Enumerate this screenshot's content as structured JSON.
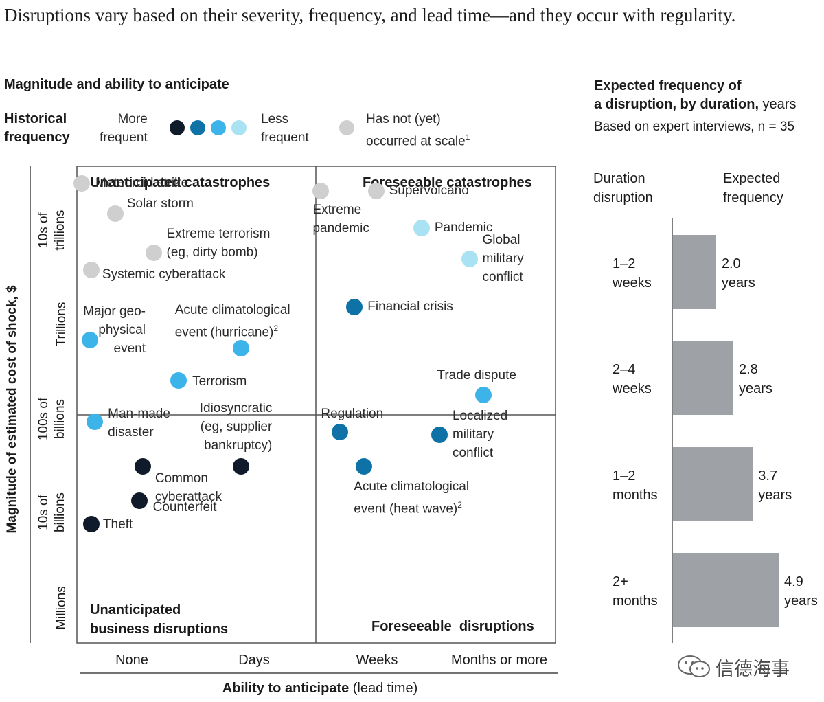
{
  "title": "Disruptions vary based on their severity, frequency, and lead time—and they occur with regularity.",
  "left_heading": "Magnitude and ability to anticipate",
  "legend": {
    "label": "Historical\nfrequency",
    "more": "More\nfrequent",
    "less": "Less\nfrequent",
    "not_yet": "Has not (yet)\noccurred at scale",
    "not_yet_sup": "1",
    "colors": [
      "#0f1b2a",
      "#0f72a7",
      "#3cb4ea",
      "#a9e2f2",
      "#cfcfcf"
    ]
  },
  "right_heading_bold": "Expected frequency of\na disruption, by duration,",
  "right_heading_unit": " years",
  "right_note": "Based on expert interviews, n = 35",
  "watermark": "信德海事",
  "quadrants": {
    "top_left": "Unanticipated catastrophes",
    "top_right": "Foreseeable catastrophes",
    "bottom_left": "Unanticipated\nbusiness disruptions",
    "bottom_right": "Foreseeable  disruptions"
  },
  "chart_data": [
    {
      "type": "scatter",
      "xlabel_bold": "Ability to anticipate",
      "xlabel_unit": " (lead time)",
      "ylabel": "Magnitude of estimated cost of shock, $",
      "x_ticks": [
        "None",
        "Days",
        "Weeks",
        "Months or more"
      ],
      "y_ticks": [
        "Millions",
        "10s of\nbillions",
        "100s of\nbillions",
        "Trillions",
        "10s of\ntrillions"
      ],
      "color_key": {
        "very_frequent": "#0f1b2a",
        "frequent": "#0f72a7",
        "less": "#3cb4ea",
        "rare": "#a9e2f2",
        "not_yet": "#cfcfcf"
      },
      "points": [
        {
          "label": "Meteoroid strike",
          "freq": "not_yet",
          "x": 0.04,
          "y": 4.82
        },
        {
          "label": "Solar storm",
          "freq": "not_yet",
          "x": 0.32,
          "y": 4.5
        },
        {
          "label": "Extreme terrorism\n(eg, dirty bomb)",
          "freq": "not_yet",
          "x": 0.64,
          "y": 4.09
        },
        {
          "label": "Systemic cyberattack",
          "freq": "not_yet",
          "x": 0.12,
          "y": 3.91
        },
        {
          "label": "Major geo-\nphysical\nevent",
          "freq": "less",
          "x": 0.11,
          "y": 3.18
        },
        {
          "label": "Acute climatological\nevent (hurricane)",
          "sup": "2",
          "freq": "less",
          "x": 1.37,
          "y": 3.09
        },
        {
          "label": "Terrorism",
          "freq": "less",
          "x": 0.85,
          "y": 2.75
        },
        {
          "label": "Extreme\npandemic",
          "freq": "not_yet",
          "x": 2.04,
          "y": 4.74
        },
        {
          "label": "Supervolcano",
          "freq": "not_yet",
          "x": 2.5,
          "y": 4.74
        },
        {
          "label": "Pandemic",
          "freq": "rare",
          "x": 2.88,
          "y": 4.35
        },
        {
          "label": "Global\nmilitary\nconflict",
          "freq": "rare",
          "x": 3.28,
          "y": 4.03
        },
        {
          "label": "Financial crisis",
          "freq": "frequent",
          "x": 2.32,
          "y": 3.52
        },
        {
          "label": "Trade dispute",
          "freq": "less",
          "x": 3.4,
          "y": 2.6
        },
        {
          "label": "Man-made\ndisaster",
          "freq": "less",
          "x": 0.15,
          "y": 2.32
        },
        {
          "label": "Idiosyncratic\n(eg, supplier\nbankruptcy)",
          "freq": "very_frequent",
          "x": 1.37,
          "y": 1.85
        },
        {
          "label": "Common\ncyberattack",
          "freq": "very_frequent",
          "x": 0.55,
          "y": 1.85
        },
        {
          "label": "Counterfeit",
          "freq": "very_frequent",
          "x": 0.52,
          "y": 1.49
        },
        {
          "label": "Theft",
          "freq": "very_frequent",
          "x": 0.12,
          "y": 1.25
        },
        {
          "label": "Regulation",
          "freq": "frequent",
          "x": 2.2,
          "y": 2.21
        },
        {
          "label": "Localized\nmilitary\nconflict",
          "freq": "frequent",
          "x": 3.03,
          "y": 2.18
        },
        {
          "label": "Acute climatological\nevent (heat wave)",
          "sup": "2",
          "freq": "frequent",
          "x": 2.4,
          "y": 1.85
        }
      ]
    },
    {
      "type": "bar",
      "orientation": "horizontal",
      "col_header_1": "Duration\ndisruption",
      "col_header_2": "Expected\nfrequency",
      "unit": "years",
      "categories": [
        "1–2\nweeks",
        "2–4\nweeks",
        "1–2\nmonths",
        "2+\nmonths"
      ],
      "values": [
        2.0,
        2.8,
        3.7,
        4.9
      ],
      "value_labels": [
        "2.0\nyears",
        "2.8\nyears",
        "3.7\nyears",
        "4.9\nyears"
      ],
      "bar_color": "#9ea2a6",
      "xlim": [
        0,
        4.9
      ]
    }
  ]
}
